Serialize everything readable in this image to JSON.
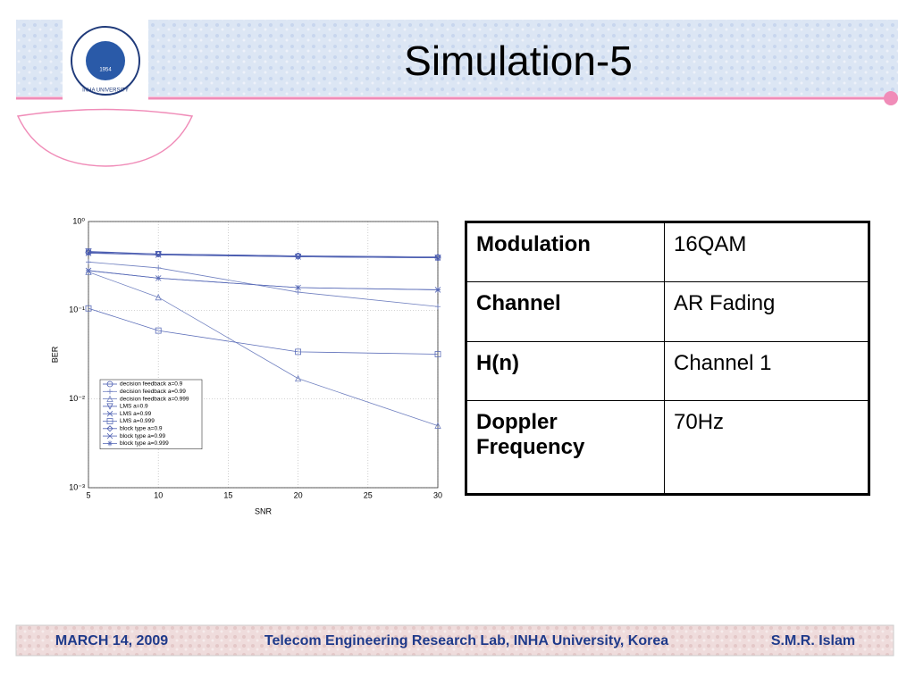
{
  "title": "Simulation-5",
  "logo": {
    "name": "INHA UNIVERSITY",
    "year": "1954"
  },
  "chart_data": {
    "type": "line",
    "xlabel": "SNR",
    "ylabel": "BER",
    "x": [
      5,
      10,
      20,
      30
    ],
    "xlim": [
      5,
      30
    ],
    "xticks": [
      5,
      10,
      15,
      20,
      25,
      30
    ],
    "ylim": [
      0.001,
      1
    ],
    "log_y": true,
    "grid": true,
    "legend": "lower left",
    "yticks": [
      {
        "value": 1,
        "label": "10⁰"
      },
      {
        "value": 0.1,
        "label": "10⁻¹"
      },
      {
        "value": 0.01,
        "label": "10⁻²"
      },
      {
        "value": 0.001,
        "label": "10⁻³"
      }
    ],
    "series": [
      {
        "name": "decision feedback a=0.9",
        "color": "#4a5cb0",
        "values": [
          0.45,
          0.43,
          0.41,
          0.39
        ]
      },
      {
        "name": "decision feedback a=0.99",
        "color": "#7080c0",
        "values": [
          0.35,
          0.3,
          0.16,
          0.11
        ]
      },
      {
        "name": "decision feedback a=0.999",
        "color": "#7080c0",
        "values": [
          0.27,
          0.14,
          0.017,
          0.005
        ]
      },
      {
        "name": "LMS a=0.9",
        "color": "#4a5cb0",
        "values": [
          0.46,
          0.43,
          0.4,
          0.39
        ]
      },
      {
        "name": "LMS a=0.99",
        "color": "#5a6cb8",
        "values": [
          0.28,
          0.23,
          0.18,
          0.17
        ]
      },
      {
        "name": "LMS a=0.999",
        "color": "#5a6cb8",
        "values": [
          0.105,
          0.059,
          0.034,
          0.032
        ]
      },
      {
        "name": "block type a=0.9",
        "color": "#4a5cb0",
        "values": [
          0.45,
          0.43,
          0.41,
          0.4
        ]
      },
      {
        "name": "block type a=0.99",
        "color": "#4a5cb0",
        "values": [
          0.44,
          0.42,
          0.4,
          0.39
        ]
      },
      {
        "name": "block type a=0.999",
        "color": "#5a6cb8",
        "values": [
          0.28,
          0.23,
          0.18,
          0.17
        ]
      }
    ]
  },
  "table": {
    "rows": [
      [
        "Modulation",
        "16QAM"
      ],
      [
        "Channel",
        "AR Fading"
      ],
      [
        "H(n)",
        "Channel 1"
      ],
      [
        "Doppler Frequency",
        "70Hz"
      ]
    ]
  },
  "footer": {
    "date": "MARCH 14, 2009",
    "lab": "Telecom Engineering Research Lab, INHA University, Korea",
    "author": "S.M.R. Islam"
  }
}
